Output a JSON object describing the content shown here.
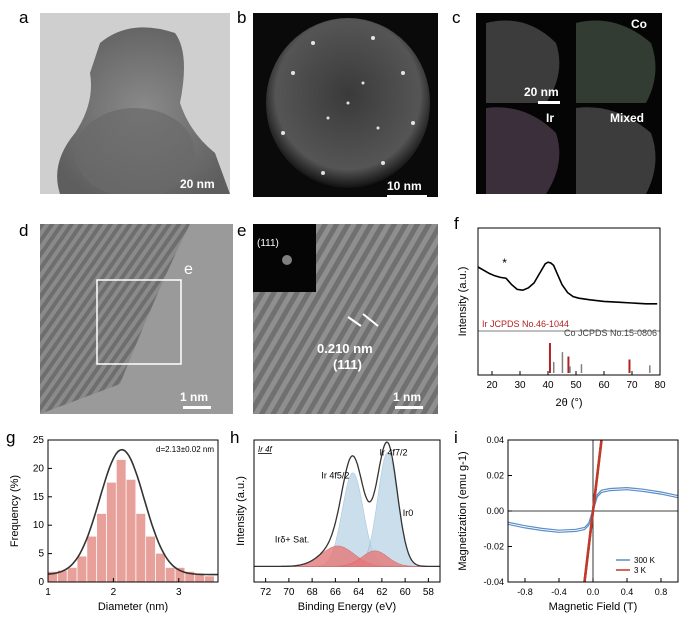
{
  "panels": {
    "a": {
      "letter": "a",
      "scale": "20 nm"
    },
    "b": {
      "letter": "b",
      "scale": "10 nm"
    },
    "c": {
      "letter": "c",
      "scale": "20 nm",
      "channels": [
        "Co",
        "Ir",
        "Mixed"
      ]
    },
    "d": {
      "letter": "d",
      "scale": "1 nm",
      "box_label": "e"
    },
    "e": {
      "letter": "e",
      "scale": "1 nm",
      "fft_label": "(111)",
      "spacing": "0.210 nm",
      "plane": "(111)"
    },
    "f": {
      "letter": "f"
    },
    "g": {
      "letter": "g"
    },
    "h": {
      "letter": "h"
    },
    "i": {
      "letter": "i"
    }
  },
  "chart_data": [
    {
      "id": "f",
      "type": "line",
      "xlabel": "2θ (°)",
      "ylabel": "Intensity (a.u.)",
      "xlim": [
        15,
        80
      ],
      "xticks": [
        "20",
        "30",
        "40",
        "50",
        "60",
        "70",
        "80"
      ],
      "star_label": "*",
      "star_x": 24.5,
      "ref_labels": [
        "Ir JCPDS No.46-1044",
        "Co JCPDS No.15-0806"
      ],
      "ir_color": "#b22222",
      "co_color": "#808080",
      "x": [
        15,
        17,
        19,
        21,
        23,
        25,
        27,
        29,
        31,
        33,
        35,
        37,
        39,
        40,
        41,
        42,
        43,
        45,
        47,
        49,
        51,
        55,
        60,
        65,
        70,
        75,
        79
      ],
      "y": [
        0.7,
        0.66,
        0.62,
        0.59,
        0.57,
        0.56,
        0.48,
        0.42,
        0.41,
        0.44,
        0.5,
        0.62,
        0.74,
        0.76,
        0.75,
        0.72,
        0.64,
        0.48,
        0.38,
        0.33,
        0.31,
        0.29,
        0.27,
        0.26,
        0.25,
        0.24,
        0.24
      ],
      "ir_refs": [
        {
          "x": 40.7,
          "h": 1.0
        },
        {
          "x": 47.3,
          "h": 0.55
        },
        {
          "x": 69.1,
          "h": 0.45
        }
      ],
      "co_refs": [
        {
          "x": 41.7,
          "h": 0.5
        },
        {
          "x": 44.8,
          "h": 0.95
        },
        {
          "x": 47.5,
          "h": 0.3
        },
        {
          "x": 51.6,
          "h": 0.4
        },
        {
          "x": 76.0,
          "h": 0.35
        }
      ]
    },
    {
      "id": "g",
      "type": "bar",
      "xlabel": "Diameter (nm)",
      "ylabel": "Frequency (%)",
      "annotation": "d=2.13±0.02 nm",
      "xlim": [
        1.0,
        3.6
      ],
      "ylim": [
        0,
        25
      ],
      "xticks": [
        "1",
        "2",
        "3"
      ],
      "yticks": [
        "0",
        "5",
        "10",
        "15",
        "20",
        "25"
      ],
      "bar_color": "#e8a09a",
      "bin_starts": [
        1.0,
        1.15,
        1.3,
        1.45,
        1.6,
        1.75,
        1.9,
        2.05,
        2.2,
        2.35,
        2.5,
        2.65,
        2.8,
        2.95,
        3.1,
        3.25,
        3.4
      ],
      "bin_width": 0.15,
      "values": [
        1.8,
        2.0,
        2.5,
        4.5,
        8.0,
        12.0,
        17.5,
        21.5,
        18.0,
        12.0,
        8.0,
        5.0,
        2.5,
        2.5,
        1.8,
        1.5,
        1.0
      ],
      "fit": {
        "mean": 2.13,
        "sigma": 0.34,
        "amp": 22.0
      }
    },
    {
      "id": "h",
      "type": "line",
      "title": "Ir 4f",
      "xlabel": "Binding Energy (eV)",
      "ylabel": "Intensity (a.u.)",
      "xlim": [
        73,
        57
      ],
      "xticks": [
        "72",
        "70",
        "68",
        "66",
        "64",
        "62",
        "60",
        "58"
      ],
      "peak_labels": [
        "Ir 4f5/2",
        "Ir 4f7/2",
        "Ir0",
        "Irδ+ Sat."
      ],
      "fill_blue": "#b9d3e6",
      "fill_red": "#e6797a",
      "peaks": [
        {
          "center": 64.5,
          "width": 0.9,
          "amp": 0.78,
          "kind": "blue"
        },
        {
          "center": 61.5,
          "width": 0.85,
          "amp": 0.95,
          "kind": "blue"
        },
        {
          "center": 65.8,
          "width": 1.4,
          "amp": 0.17,
          "kind": "red"
        },
        {
          "center": 62.6,
          "width": 1.1,
          "amp": 0.13,
          "kind": "red"
        }
      ],
      "background": 0.08
    },
    {
      "id": "i",
      "type": "line",
      "xlabel": "Magnetic Field (T)",
      "ylabel": "Magnetization (emu g-1)",
      "xlim": [
        -1.0,
        1.0
      ],
      "ylim": [
        -0.04,
        0.04
      ],
      "xticks": [
        "-0.8",
        "-0.4",
        "0.0",
        "0.4",
        "0.8"
      ],
      "yticks": [
        "-0.04",
        "-0.02",
        "0.00",
        "0.02",
        "0.04"
      ],
      "series": [
        {
          "name": "300 K",
          "color": "#5b8ec9",
          "x": [
            -1.0,
            -0.8,
            -0.6,
            -0.4,
            -0.2,
            -0.1,
            -0.05,
            0.0,
            0.05,
            0.1,
            0.2,
            0.4,
            0.6,
            0.8,
            1.0
          ],
          "y": [
            -0.0075,
            -0.0095,
            -0.011,
            -0.012,
            -0.0115,
            -0.0105,
            -0.008,
            0.0,
            0.008,
            0.0105,
            0.0115,
            0.012,
            0.011,
            0.0095,
            0.0075
          ]
        },
        {
          "name": "3 K",
          "color": "#c0392b",
          "x": [
            -0.1,
            0.1
          ],
          "y": [
            -0.04,
            0.04
          ]
        }
      ]
    }
  ]
}
